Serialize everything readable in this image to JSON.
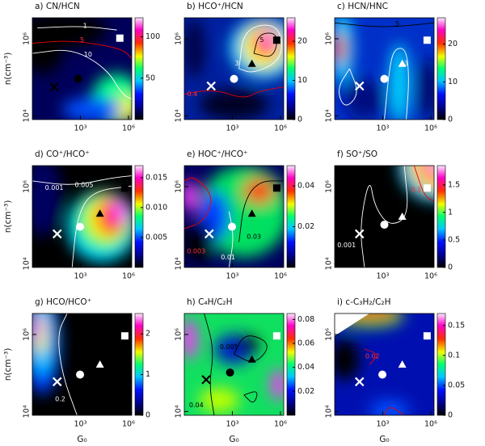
{
  "chart_data": [
    {
      "type": "heatmap",
      "title": "a) CN/HCN",
      "ylabel": "n(cm⁻³)",
      "log": true,
      "xlim": [
        1,
        1600000
      ],
      "ylim": [
        8000,
        3500000
      ],
      "xticks": [
        {
          "value": 1000,
          "label": "10³"
        },
        {
          "value": 1000000,
          "label": "10⁶"
        }
      ],
      "yticks": [
        {
          "value": 10000,
          "label": "10⁴"
        },
        {
          "value": 1000000,
          "label": "10⁶"
        }
      ],
      "clim": [
        0,
        123
      ],
      "cticks": [
        50,
        100
      ],
      "contour_labels": [
        1,
        5,
        10
      ]
    },
    {
      "type": "heatmap",
      "title": "b) HCO⁺/HCN",
      "log": true,
      "xlim": [
        1,
        1600000
      ],
      "ylim": [
        8000,
        3500000
      ],
      "xticks": [
        {
          "value": 1000,
          "label": "10³"
        },
        {
          "value": 1000000,
          "label": "10⁶"
        }
      ],
      "yticks": [
        {
          "value": 10000,
          "label": "10⁴"
        },
        {
          "value": 1000000,
          "label": "10⁶"
        }
      ],
      "clim": [
        0,
        26
      ],
      "cticks": [
        0,
        10,
        20
      ],
      "contour_labels": [
        3,
        5,
        0.4
      ]
    },
    {
      "type": "heatmap",
      "title": "c) HCN/HNC",
      "log": true,
      "xlim": [
        1,
        1600000
      ],
      "ylim": [
        8000,
        3500000
      ],
      "xticks": [
        {
          "value": 1000,
          "label": "10³"
        },
        {
          "value": 1000000,
          "label": "10⁶"
        }
      ],
      "yticks": [
        {
          "value": 10000,
          "label": "10⁴"
        },
        {
          "value": 1000000,
          "label": "10⁶"
        }
      ],
      "clim": [
        0,
        27
      ],
      "cticks": [
        0,
        10,
        20
      ],
      "contour_labels": [
        5,
        3
      ]
    },
    {
      "type": "heatmap",
      "title": "d) CO⁺/HCO⁺",
      "ylabel": "n(cm⁻³)",
      "log": true,
      "xlim": [
        1,
        1600000
      ],
      "ylim": [
        8000,
        3500000
      ],
      "xticks": [
        {
          "value": 1000,
          "label": "10³"
        },
        {
          "value": 1000000,
          "label": "10⁶"
        }
      ],
      "yticks": [
        {
          "value": 10000,
          "label": "10⁴"
        },
        {
          "value": 1000000,
          "label": "10⁶"
        }
      ],
      "clim": [
        0,
        0.017
      ],
      "cticks": [
        0.005,
        {
          "value": 0.01,
          "label": "0.010"
        },
        0.015
      ],
      "contour_labels": [
        0.001,
        0.005
      ]
    },
    {
      "type": "heatmap",
      "title": "e) HOC⁺/HCO⁺",
      "log": true,
      "xlim": [
        1,
        1600000
      ],
      "ylim": [
        8000,
        3500000
      ],
      "xticks": [
        {
          "value": 1000,
          "label": "10³"
        },
        {
          "value": 1000000,
          "label": "10⁶"
        }
      ],
      "yticks": [
        {
          "value": 10000,
          "label": "10⁴"
        },
        {
          "value": 1000000,
          "label": "10⁶"
        }
      ],
      "clim": [
        0,
        0.05
      ],
      "cticks": [
        0.02,
        0.04
      ],
      "contour_labels": [
        0.003,
        0.03,
        0.01
      ]
    },
    {
      "type": "heatmap",
      "title": "f) SO⁺/SO",
      "log": true,
      "xlim": [
        1,
        1600000
      ],
      "ylim": [
        8000,
        3500000
      ],
      "xticks": [
        {
          "value": 1000,
          "label": "10³"
        },
        {
          "value": 1000000,
          "label": "10⁶"
        }
      ],
      "yticks": [
        {
          "value": 10000,
          "label": "10⁴"
        },
        {
          "value": 1000000,
          "label": "10⁶"
        }
      ],
      "clim": [
        0,
        1.85
      ],
      "cticks": [
        0,
        0.5,
        1,
        1.5
      ],
      "contour_labels": [
        0.001,
        0.1
      ]
    },
    {
      "type": "heatmap",
      "title": "g) HCO/HCO⁺",
      "ylabel": "n(cm⁻³)",
      "xlabel": "G₀",
      "log": true,
      "xlim": [
        1,
        1600000
      ],
      "ylim": [
        8000,
        3500000
      ],
      "xticks": [
        {
          "value": 1000,
          "label": "10³"
        },
        {
          "value": 1000000,
          "label": "10⁶"
        }
      ],
      "yticks": [
        {
          "value": 10000,
          "label": "10⁴"
        },
        {
          "value": 1000000,
          "label": "10⁶"
        }
      ],
      "clim": [
        0,
        2.5
      ],
      "cticks": [
        0,
        1,
        2
      ],
      "contour_labels": [
        0.2
      ]
    },
    {
      "type": "heatmap",
      "title": "h) C₄H/C₂H",
      "xlabel": "G₀",
      "log": true,
      "xlim": [
        1,
        1600000
      ],
      "ylim": [
        8000,
        3500000
      ],
      "xticks": [
        {
          "value": 1000,
          "label": "10³"
        },
        {
          "value": 1000000,
          "label": "10⁶"
        }
      ],
      "yticks": [
        {
          "value": 10000,
          "label": "10⁴"
        },
        {
          "value": 1000000,
          "label": "10⁶"
        }
      ],
      "clim": [
        0,
        0.085
      ],
      "cticks": [
        0.02,
        0.04,
        0.06,
        0.08
      ],
      "contour_labels": [
        0.005,
        0.04
      ]
    },
    {
      "type": "heatmap",
      "title": "i) c-C₃H₂/C₂H",
      "xlabel": "G₀",
      "log": true,
      "xlim": [
        1,
        1600000
      ],
      "ylim": [
        8000,
        3500000
      ],
      "xticks": [
        {
          "value": 1000,
          "label": "10³"
        },
        {
          "value": 1000000,
          "label": "10⁶"
        }
      ],
      "yticks": [
        {
          "value": 10000,
          "label": "10⁴"
        },
        {
          "value": 1000000,
          "label": "10⁶"
        }
      ],
      "clim": [
        0,
        0.17
      ],
      "cticks": [
        0,
        0.05,
        0.1,
        0.15
      ],
      "contour_labels": [
        0.02
      ]
    }
  ]
}
